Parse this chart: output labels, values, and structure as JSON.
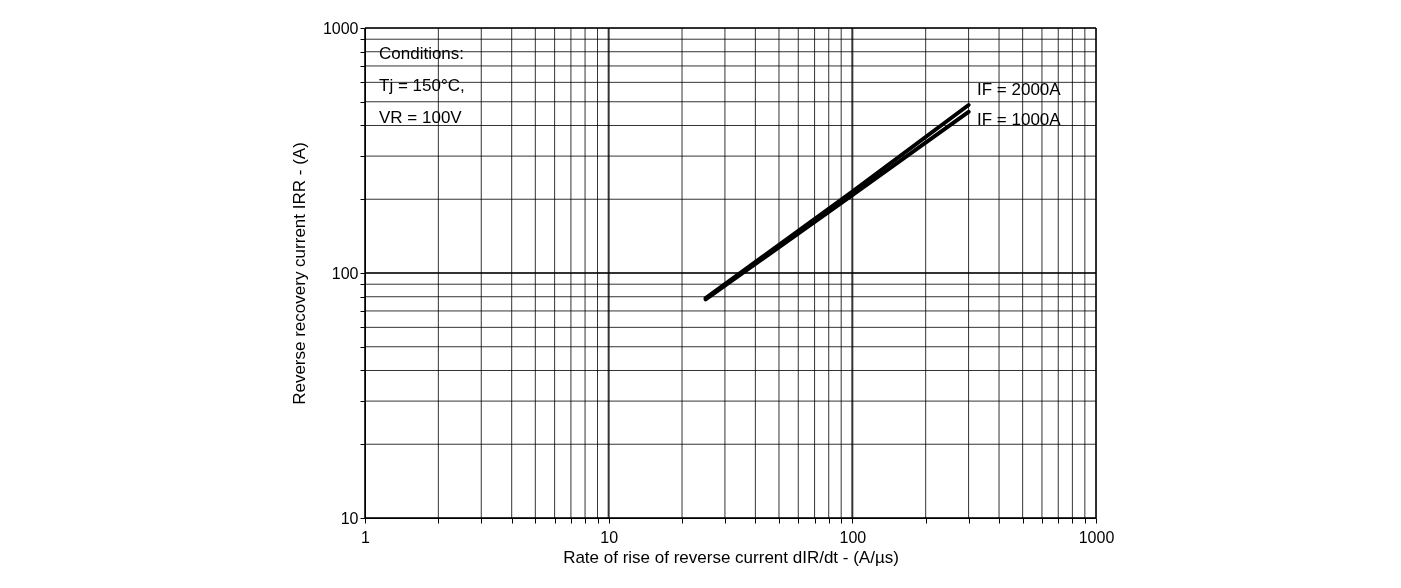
{
  "chart_data": {
    "type": "line",
    "xlabel": "Rate of rise of reverse current dIR/dt - (A/µs)",
    "ylabel": "Reverse recovery current IRR - (A)",
    "log": "xy",
    "grid": true,
    "line_style": "solid",
    "marker": "none",
    "xlim": [
      1,
      1000
    ],
    "ylim": [
      10,
      1000
    ],
    "xticks": [
      1,
      {
        "value": 2,
        "label": null
      },
      {
        "value": 3,
        "label": null
      },
      {
        "value": 4,
        "label": null
      },
      {
        "value": 5,
        "label": null
      },
      {
        "value": 6,
        "label": null
      },
      {
        "value": 7,
        "label": null
      },
      {
        "value": 8,
        "label": null
      },
      {
        "value": 9,
        "label": null
      },
      10,
      {
        "value": 20,
        "label": null
      },
      {
        "value": 30,
        "label": null
      },
      {
        "value": 40,
        "label": null
      },
      {
        "value": 50,
        "label": null
      },
      {
        "value": 60,
        "label": null
      },
      {
        "value": 70,
        "label": null
      },
      {
        "value": 80,
        "label": null
      },
      {
        "value": 90,
        "label": null
      },
      100,
      {
        "value": 200,
        "label": null
      },
      {
        "value": 300,
        "label": null
      },
      {
        "value": 400,
        "label": null
      },
      {
        "value": 500,
        "label": null
      },
      {
        "value": 600,
        "label": null
      },
      {
        "value": 700,
        "label": null
      },
      {
        "value": 800,
        "label": null
      },
      {
        "value": 900,
        "label": null
      },
      1000
    ],
    "yticks": [
      10,
      {
        "value": 20,
        "label": null
      },
      {
        "value": 30,
        "label": null
      },
      {
        "value": 40,
        "label": null
      },
      {
        "value": 50,
        "label": null
      },
      {
        "value": 60,
        "label": null
      },
      {
        "value": 70,
        "label": null
      },
      {
        "value": 80,
        "label": null
      },
      {
        "value": 90,
        "label": null
      },
      100,
      {
        "value": 200,
        "label": null
      },
      {
        "value": 300,
        "label": null
      },
      {
        "value": 400,
        "label": null
      },
      {
        "value": 500,
        "label": null
      },
      {
        "value": 600,
        "label": null
      },
      {
        "value": 700,
        "label": null
      },
      {
        "value": 800,
        "label": null
      },
      {
        "value": 900,
        "label": null
      },
      1000
    ],
    "annotations": [
      "Conditions:",
      "Tj = 150°C,",
      "VR = 100V"
    ],
    "series": [
      {
        "name": "IF = 2000A",
        "color": "#000000",
        "x": [
          25,
          100,
          300
        ],
        "values": [
          79,
          215,
          485
        ]
      },
      {
        "name": "IF = 1000A",
        "color": "#000000",
        "x": [
          25,
          100,
          300
        ],
        "values": [
          78,
          208,
          455
        ]
      }
    ]
  }
}
